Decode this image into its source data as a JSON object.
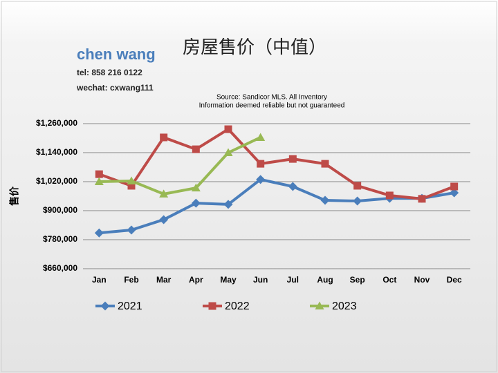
{
  "author": {
    "name": "chen wang",
    "tel": "tel: 858 216 0122",
    "wechat": "wechat: cxwang111"
  },
  "chart_data": {
    "type": "line",
    "title": "房屋售价（中值）",
    "subtitle": [
      "Source: Sandicor MLS. All Inventory",
      "Information deemed reliable but not guaranteed"
    ],
    "ylabel": "售价",
    "categories": [
      "Jan",
      "Feb",
      "Mar",
      "Apr",
      "May",
      "Jun",
      "Jul",
      "Aug",
      "Sep",
      "Oct",
      "Nov",
      "Dec"
    ],
    "series": [
      {
        "name": "2021",
        "color": "#4a7ebb",
        "marker": "diamond",
        "values": [
          808000,
          820000,
          863000,
          931000,
          926000,
          1029000,
          1000000,
          943000,
          940000,
          951000,
          951000,
          974000
        ]
      },
      {
        "name": "2022",
        "color": "#be4b48",
        "marker": "square",
        "values": [
          1051000,
          1003000,
          1203000,
          1154000,
          1237000,
          1094000,
          1114000,
          1094000,
          1003000,
          963000,
          949000,
          1000000
        ]
      },
      {
        "name": "2023",
        "color": "#98b954",
        "marker": "triangle",
        "values": [
          1020000,
          1023000,
          969000,
          994000,
          1140000,
          1203000,
          null,
          null,
          null,
          null,
          null,
          null
        ]
      }
    ],
    "ylim": [
      660000,
      1260000
    ],
    "yticks": [
      {
        "value": 660000,
        "label": "$660,000"
      },
      {
        "value": 780000,
        "label": "$780,000"
      },
      {
        "value": 900000,
        "label": "$900,000"
      },
      {
        "value": 1020000,
        "label": "$1,020,000"
      },
      {
        "value": 1140000,
        "label": "$1,140,000"
      },
      {
        "value": 1260000,
        "label": "$1,260,000"
      }
    ],
    "grid": true,
    "legend": "bottom"
  }
}
